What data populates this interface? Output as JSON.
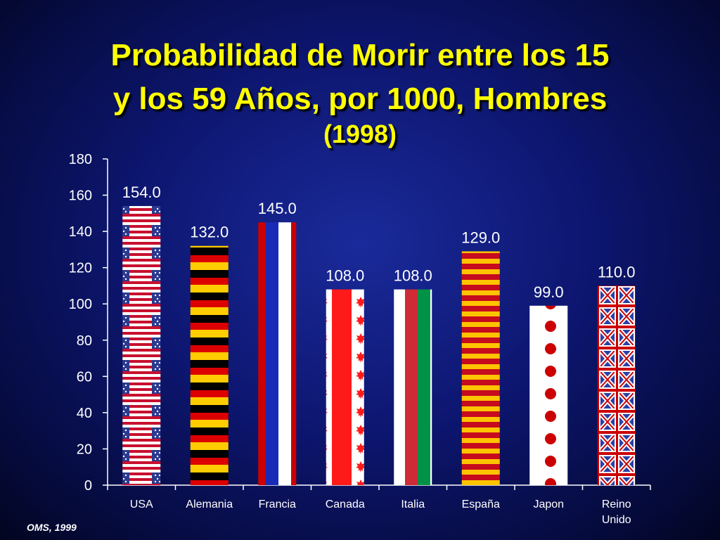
{
  "title_line1": "Probabilidad de Morir entre los 15",
  "title_line2": "y los 59 Años, por 1000, Hombres",
  "title_line3": "(1998)",
  "footer": "OMS, 1999",
  "chart_data": {
    "type": "bar",
    "title": "Probabilidad de Morir entre los 15 y los 59 Años, por 1000, Hombres (1998)",
    "categories": [
      "USA",
      "Alemania",
      "Francia",
      "Canada",
      "Italia",
      "España",
      "Japon",
      "Reino Unido"
    ],
    "category_lines": [
      [
        "USA"
      ],
      [
        "Alemania"
      ],
      [
        "Francia"
      ],
      [
        "Canada"
      ],
      [
        "Italia"
      ],
      [
        "España"
      ],
      [
        "Japon"
      ],
      [
        "Reino",
        "Unido"
      ]
    ],
    "values": [
      154.0,
      132.0,
      145.0,
      108.0,
      108.0,
      129.0,
      99.0,
      110.0
    ],
    "value_labels": [
      "154.0",
      "132.0",
      "145.0",
      "108.0",
      "108.0",
      "129.0",
      "99.0",
      "110.0"
    ],
    "bar_patterns": [
      "usa-flag",
      "germany-flag",
      "france-flag",
      "canada-flag",
      "italy-flag",
      "spain-flag",
      "japan-flag",
      "uk-flag"
    ],
    "yticks": [
      "0",
      "20",
      "40",
      "60",
      "80",
      "100",
      "120",
      "140",
      "160",
      "180"
    ],
    "ylim": [
      0,
      180
    ],
    "xlabel": "",
    "ylabel": "",
    "grid": false,
    "colors": {
      "title": "#ffff00",
      "axis": "#ffffff",
      "usa_red": "#c8102e",
      "usa_blue": "#2b3a8f",
      "germany_black": "#000000",
      "germany_red": "#dd0000",
      "germany_gold": "#ffcc00",
      "france_blue": "#1a2ab8",
      "france_red": "#cc0000",
      "canada_red": "#ff1a1a",
      "italy_green": "#009246",
      "italy_red": "#ce2b37",
      "spain_red": "#c60b1e",
      "spain_yellow": "#ffc400",
      "japan_red": "#cc0000",
      "uk_blue": "#2a3fa8",
      "uk_red": "#cc0000"
    }
  }
}
